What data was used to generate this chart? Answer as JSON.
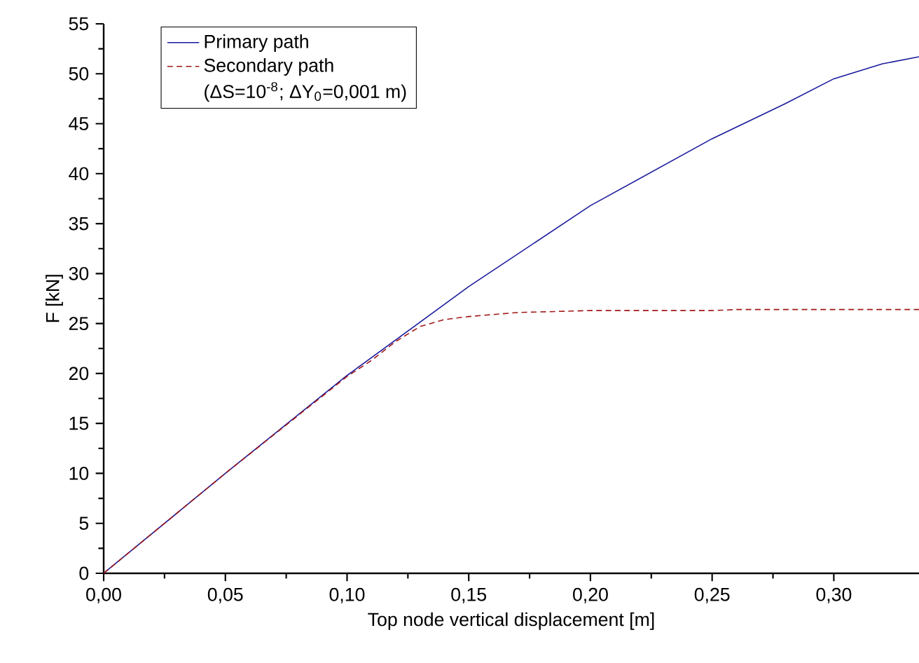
{
  "chart_data": {
    "type": "line",
    "xlabel": "Top node vertical displacement [m]",
    "ylabel": "F [kN]",
    "xlim": [
      0,
      0.335
    ],
    "ylim": [
      0,
      55
    ],
    "xticks": [
      {
        "value": 0,
        "label": "0,00"
      },
      {
        "value": 0.05,
        "label": "0,05"
      },
      {
        "value": 0.1,
        "label": "0,10"
      },
      {
        "value": 0.15,
        "label": "0,15"
      },
      {
        "value": 0.2,
        "label": "0,20"
      },
      {
        "value": 0.25,
        "label": "0,25"
      },
      {
        "value": 0.3,
        "label": "0,30"
      }
    ],
    "yticks": [
      0,
      5,
      10,
      15,
      20,
      25,
      30,
      35,
      40,
      45,
      50,
      55
    ],
    "grid": false,
    "legend": "top left",
    "marker": "none",
    "annotations": [
      "(ΔS=10$^{-8}$; ΔY$_{0}$=0,001 m)"
    ],
    "series": [
      {
        "name": "Primary path",
        "color": "#1a1a9c",
        "line_style": "solid",
        "x": [
          0,
          0.05,
          0.1,
          0.15,
          0.2,
          0.25,
          0.28,
          0.3,
          0.32,
          0.335
        ],
        "values": [
          0,
          10,
          19.8,
          28.7,
          36.8,
          43.5,
          47,
          49.5,
          51,
          51.7
        ]
      },
      {
        "name": "Secondary path",
        "color": "#a01818",
        "line_style": "dashed",
        "x": [
          0,
          0.05,
          0.1,
          0.11,
          0.12,
          0.13,
          0.14,
          0.15,
          0.17,
          0.2,
          0.25,
          0.26,
          0.335
        ],
        "values": [
          0,
          10,
          19.7,
          21.3,
          23.2,
          24.7,
          25.4,
          25.7,
          26.1,
          26.3,
          26.3,
          26.4,
          26.4
        ]
      }
    ]
  }
}
